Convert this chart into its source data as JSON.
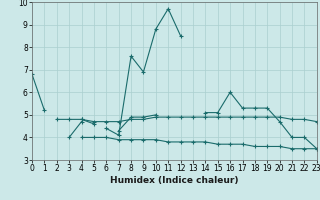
{
  "title": "",
  "xlabel": "Humidex (Indice chaleur)",
  "ylabel": "",
  "background_color": "#cce8e8",
  "grid_color": "#aacfcf",
  "line_color": "#1a6b6b",
  "x": [
    0,
    1,
    2,
    3,
    4,
    5,
    6,
    7,
    8,
    9,
    10,
    11,
    12,
    13,
    14,
    15,
    16,
    17,
    18,
    19,
    20,
    21,
    22,
    23
  ],
  "series1": [
    6.8,
    5.2,
    null,
    4.0,
    4.7,
    null,
    4.4,
    4.1,
    7.6,
    6.9,
    8.8,
    9.7,
    8.5,
    null,
    5.1,
    5.1,
    6.0,
    5.3,
    5.3,
    5.3,
    4.7,
    4.0,
    4.0,
    3.5
  ],
  "series2": [
    null,
    null,
    4.8,
    4.8,
    4.8,
    4.6,
    null,
    4.3,
    4.9,
    4.9,
    5.0,
    null,
    null,
    null,
    null,
    null,
    null,
    null,
    null,
    null,
    null,
    null,
    null,
    null
  ],
  "series3_flat": [
    null,
    null,
    null,
    null,
    4.8,
    4.7,
    4.7,
    4.7,
    4.8,
    4.8,
    4.9,
    4.9,
    4.9,
    4.9,
    4.9,
    4.9,
    4.9,
    4.9,
    4.9,
    4.9,
    4.9,
    4.8,
    4.8,
    4.7
  ],
  "series4_flat": [
    null,
    null,
    null,
    null,
    4.0,
    4.0,
    4.0,
    3.9,
    3.9,
    3.9,
    3.9,
    3.8,
    3.8,
    3.8,
    3.8,
    3.7,
    3.7,
    3.7,
    3.6,
    3.6,
    3.6,
    3.5,
    3.5,
    3.5
  ],
  "ylim": [
    3,
    10
  ],
  "xlim": [
    0,
    23
  ],
  "yticks": [
    3,
    4,
    5,
    6,
    7,
    8,
    9,
    10
  ],
  "xticks": [
    0,
    1,
    2,
    3,
    4,
    5,
    6,
    7,
    8,
    9,
    10,
    11,
    12,
    13,
    14,
    15,
    16,
    17,
    18,
    19,
    20,
    21,
    22,
    23
  ],
  "tick_fontsize": 5.5,
  "xlabel_fontsize": 6.5
}
